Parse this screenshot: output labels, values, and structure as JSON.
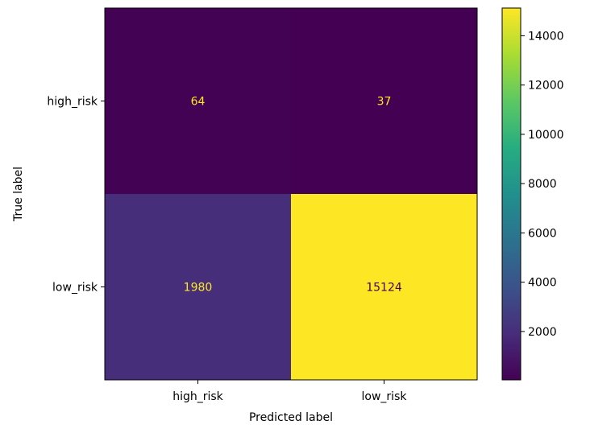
{
  "chart_data": {
    "type": "heatmap",
    "title": "",
    "xlabel": "Predicted label",
    "ylabel": "True label",
    "x_categories": [
      "high_risk",
      "low_risk"
    ],
    "y_categories": [
      "high_risk",
      "low_risk"
    ],
    "values": [
      [
        64,
        37
      ],
      [
        1980,
        15124
      ]
    ],
    "colorbar": {
      "colormap": "viridis",
      "min": 37,
      "max": 15124,
      "ticks": [
        2000,
        4000,
        6000,
        8000,
        10000,
        12000,
        14000
      ]
    },
    "grid": false
  }
}
